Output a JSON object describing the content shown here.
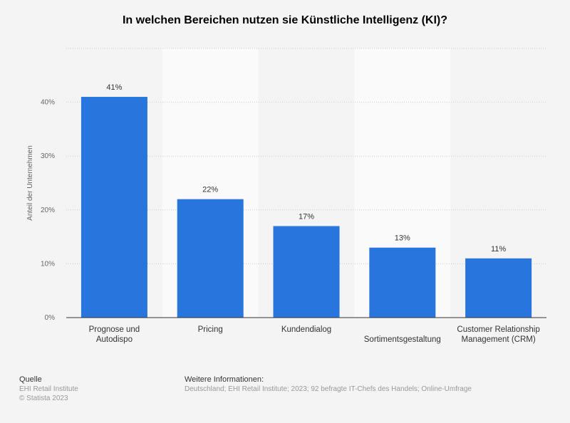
{
  "chart_data": {
    "type": "bar",
    "title": "In welchen Bereichen nutzen sie Künstliche Intelligenz (KI)?",
    "ylabel": "Anteil der Unternehmen",
    "xlabel": "",
    "categories": [
      "Prognose und Autodispo",
      "Pricing",
      "Kundendialog",
      "Sortimentsgestaltung",
      "Customer Relationship Management (CRM)"
    ],
    "values": [
      41,
      22,
      17,
      13,
      11
    ],
    "data_labels": [
      "41%",
      "22%",
      "17%",
      "13%",
      "11%"
    ],
    "ylim": [
      0,
      50
    ],
    "yticks": [
      0,
      10,
      20,
      30,
      40
    ],
    "ytick_labels": [
      "0%",
      "10%",
      "20%",
      "30%",
      "40%"
    ],
    "grid": true,
    "bar_color": "#2876dd"
  },
  "footer": {
    "source_heading": "Quelle",
    "source": "EHI Retail Institute",
    "copyright": "© Statista 2023",
    "info_heading": "Weitere Informationen:",
    "info": "Deutschland; EHI Retail Institute; 2023; 92 befragte IT-Chefs des Handels; Online-Umfrage"
  }
}
